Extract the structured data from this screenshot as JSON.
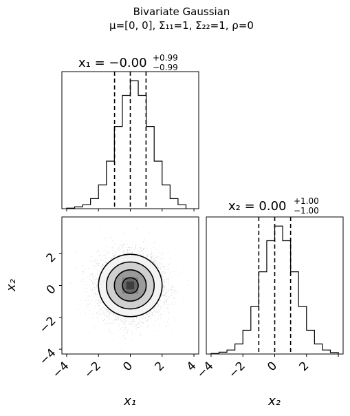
{
  "figure": {
    "title": "Bivariate Gaussian",
    "subtitle": "μ=[0, 0], Σ₁₁=1, Σ₂₂=1, ρ=0"
  },
  "chart_data": [
    {
      "type": "histogram",
      "panel": "x1-marginal",
      "title_main": "x₁ = −0.00",
      "title_sup": "+0.99",
      "title_sub": "−0.99",
      "xlim": [
        -4.3,
        4.3
      ],
      "bin_edges": [
        -4.0,
        -3.5,
        -3.0,
        -2.5,
        -2.0,
        -1.5,
        -1.0,
        -0.5,
        0.0,
        0.5,
        1.0,
        1.5,
        2.0,
        2.5,
        3.0,
        3.5
      ],
      "counts": [
        0.3,
        1.0,
        2.2,
        5.5,
        13.0,
        26.0,
        45.0,
        62.0,
        70.0,
        62.0,
        45.0,
        26.0,
        13.0,
        5.5,
        2.2
      ],
      "quantile_lines": [
        -0.99,
        0.0,
        0.99
      ],
      "ylim": [
        0,
        75
      ]
    },
    {
      "type": "scatter",
      "panel": "joint-x1-x2",
      "xlim": [
        -4.3,
        4.3
      ],
      "ylim": [
        -4.3,
        4.3
      ],
      "xticks": [
        "−4",
        "−2",
        "0",
        "2",
        "4"
      ],
      "yticks": [
        "−4",
        "−2",
        "0",
        "2"
      ],
      "xlabel": "x₁",
      "ylabel": "x₂",
      "contour_radii": [
        0.5,
        1.0,
        1.5,
        2.0
      ]
    },
    {
      "type": "histogram",
      "panel": "x2-marginal",
      "title_main": "x₂ = 0.00",
      "title_sup": "+1.00",
      "title_sub": "−1.00",
      "xlim": [
        -4.3,
        4.3
      ],
      "bin_edges": [
        -4.0,
        -3.5,
        -3.0,
        -2.5,
        -2.0,
        -1.5,
        -1.0,
        -0.5,
        0.0,
        0.5,
        1.0,
        1.5,
        2.0,
        2.5,
        3.0,
        3.5,
        4.0
      ],
      "counts": [
        0.3,
        1.0,
        2.2,
        5.5,
        13.0,
        26.0,
        45.0,
        62.0,
        70.0,
        62.0,
        45.0,
        26.0,
        13.0,
        5.5,
        2.2,
        0.8
      ],
      "quantile_lines": [
        -1.0,
        0.0,
        1.0
      ],
      "ylim": [
        0,
        75
      ],
      "xticks": [
        "−4",
        "−2",
        "0",
        "2"
      ],
      "xlabel": "x₂"
    }
  ]
}
